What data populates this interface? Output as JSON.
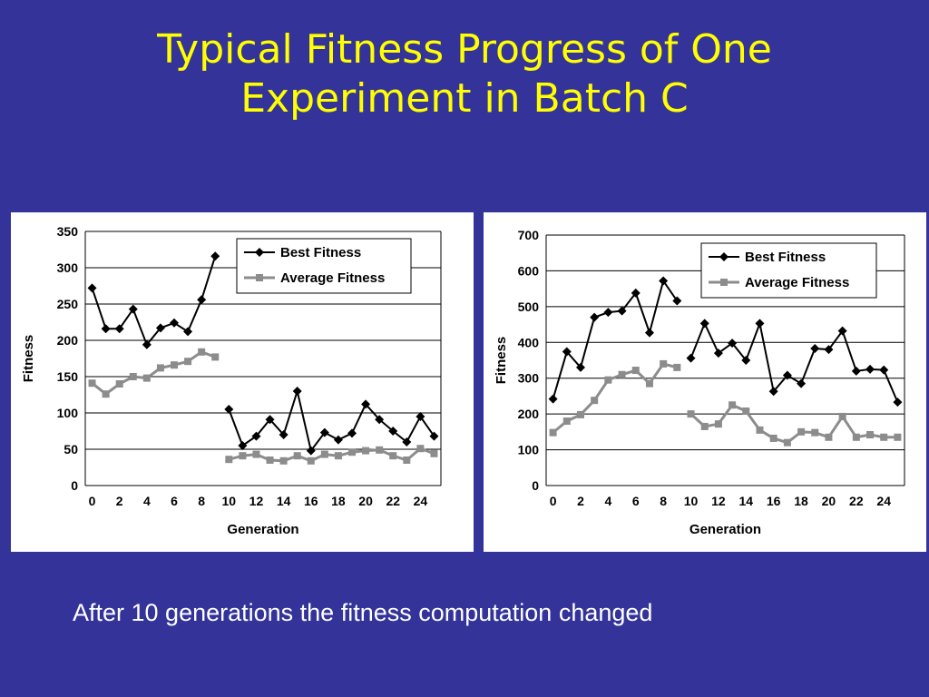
{
  "title": {
    "line1": "Typical Fitness Progress of One",
    "line2": "Experiment in Batch C"
  },
  "caption": "After 10 generations the fitness computation changed",
  "colors": {
    "background": "#333399",
    "title": "#ffff00",
    "best_series": "#000000",
    "average_series": "#8c8c8c"
  },
  "chart_data": [
    {
      "type": "line",
      "xlabel": "Generation",
      "ylabel": "Fitness",
      "xlim": [
        0,
        25
      ],
      "ylim": [
        0,
        350
      ],
      "yticks": [
        0,
        50,
        100,
        150,
        200,
        250,
        300,
        350
      ],
      "xticks": [
        0,
        2,
        4,
        6,
        8,
        10,
        12,
        14,
        16,
        18,
        20,
        22,
        24
      ],
      "grid": "horizontal",
      "legend": "top-right",
      "break_after": 9,
      "series": [
        {
          "name": "Best Fitness",
          "marker": "diamond",
          "x": [
            0,
            1,
            2,
            3,
            4,
            5,
            6,
            7,
            8,
            9,
            10,
            11,
            12,
            13,
            14,
            15,
            16,
            17,
            18,
            19,
            20,
            21,
            22,
            23,
            24,
            25
          ],
          "values": [
            272,
            216,
            216,
            243,
            194,
            217,
            224,
            212,
            256,
            316,
            105,
            55,
            68,
            91,
            70,
            130,
            48,
            73,
            63,
            72,
            112,
            91,
            75,
            60,
            95,
            68
          ]
        },
        {
          "name": "Average Fitness",
          "marker": "square",
          "x": [
            0,
            1,
            2,
            3,
            4,
            5,
            6,
            7,
            8,
            9,
            10,
            11,
            12,
            13,
            14,
            15,
            16,
            17,
            18,
            19,
            20,
            21,
            22,
            23,
            24,
            25
          ],
          "values": [
            141,
            126,
            140,
            150,
            148,
            162,
            166,
            171,
            184,
            177,
            36,
            41,
            43,
            35,
            34,
            41,
            34,
            43,
            41,
            46,
            48,
            49,
            41,
            35,
            51,
            44
          ]
        }
      ]
    },
    {
      "type": "line",
      "xlabel": "Generation",
      "ylabel": "Fitness",
      "xlim": [
        0,
        25
      ],
      "ylim": [
        0,
        700
      ],
      "yticks": [
        0,
        100,
        200,
        300,
        400,
        500,
        600,
        700
      ],
      "xticks": [
        0,
        2,
        4,
        6,
        8,
        10,
        12,
        14,
        16,
        18,
        20,
        22,
        24
      ],
      "grid": "horizontal",
      "legend": "top-right",
      "break_after": 9,
      "series": [
        {
          "name": "Best Fitness",
          "marker": "diamond",
          "x": [
            0,
            1,
            2,
            3,
            4,
            5,
            6,
            7,
            8,
            9,
            10,
            11,
            12,
            13,
            14,
            15,
            16,
            17,
            18,
            19,
            20,
            21,
            22,
            23,
            24,
            25
          ],
          "values": [
            242,
            374,
            330,
            470,
            484,
            488,
            538,
            427,
            572,
            516,
            356,
            453,
            370,
            398,
            350,
            453,
            263,
            308,
            285,
            383,
            380,
            432,
            320,
            325,
            323,
            233
          ]
        },
        {
          "name": "Average Fitness",
          "marker": "square",
          "x": [
            0,
            1,
            2,
            3,
            4,
            5,
            6,
            7,
            8,
            9,
            10,
            11,
            12,
            13,
            14,
            15,
            16,
            17,
            18,
            19,
            20,
            21,
            22,
            23,
            24,
            25
          ],
          "values": [
            148,
            180,
            198,
            238,
            295,
            310,
            322,
            285,
            340,
            330,
            200,
            165,
            172,
            225,
            208,
            155,
            132,
            120,
            150,
            148,
            135,
            193,
            135,
            142,
            135,
            135
          ]
        }
      ]
    }
  ]
}
